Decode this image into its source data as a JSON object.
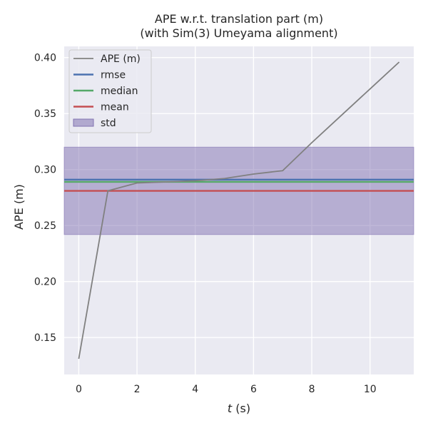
{
  "chart_data": {
    "type": "line",
    "title": "APE w.r.t. translation part (m)",
    "subtitle": "(with Sim(3) Umeyama alignment)",
    "xlabel_italic": "t",
    "xlabel_suffix": " (s)",
    "ylabel": "APE (m)",
    "xlim": [
      -0.5,
      11.5
    ],
    "ylim": [
      0.117,
      0.41
    ],
    "xticks": [
      0,
      2,
      4,
      6,
      8,
      10
    ],
    "yticks": [
      0.15,
      0.2,
      0.25,
      0.3,
      0.35,
      0.4
    ],
    "grid": true,
    "legend_position": "top-left",
    "series": [
      {
        "name": "APE (m)",
        "color": "#808080",
        "x": [
          0,
          1,
          2,
          3,
          4,
          5,
          6,
          7,
          8,
          9,
          10,
          11
        ],
        "y": [
          0.131,
          0.281,
          0.288,
          0.289,
          0.29,
          0.292,
          0.296,
          0.299,
          0.324,
          0.348,
          0.372,
          0.396
        ]
      }
    ],
    "stats": {
      "rmse": 0.291,
      "median": 0.289,
      "mean": 0.281,
      "std": 0.039
    },
    "legend": [
      {
        "key": "ape",
        "label": "APE (m)",
        "color": "#808080",
        "kind": "line"
      },
      {
        "key": "rmse",
        "label": "rmse",
        "color": "#4c72b0",
        "kind": "line"
      },
      {
        "key": "median",
        "label": "median",
        "color": "#55a868",
        "kind": "line"
      },
      {
        "key": "mean",
        "label": "mean",
        "color": "#c44e52",
        "kind": "line"
      },
      {
        "key": "std",
        "label": "std",
        "color": "#8172b2",
        "kind": "patch"
      }
    ],
    "colors": {
      "background": "#eaeaf2",
      "grid": "#ffffff"
    }
  }
}
